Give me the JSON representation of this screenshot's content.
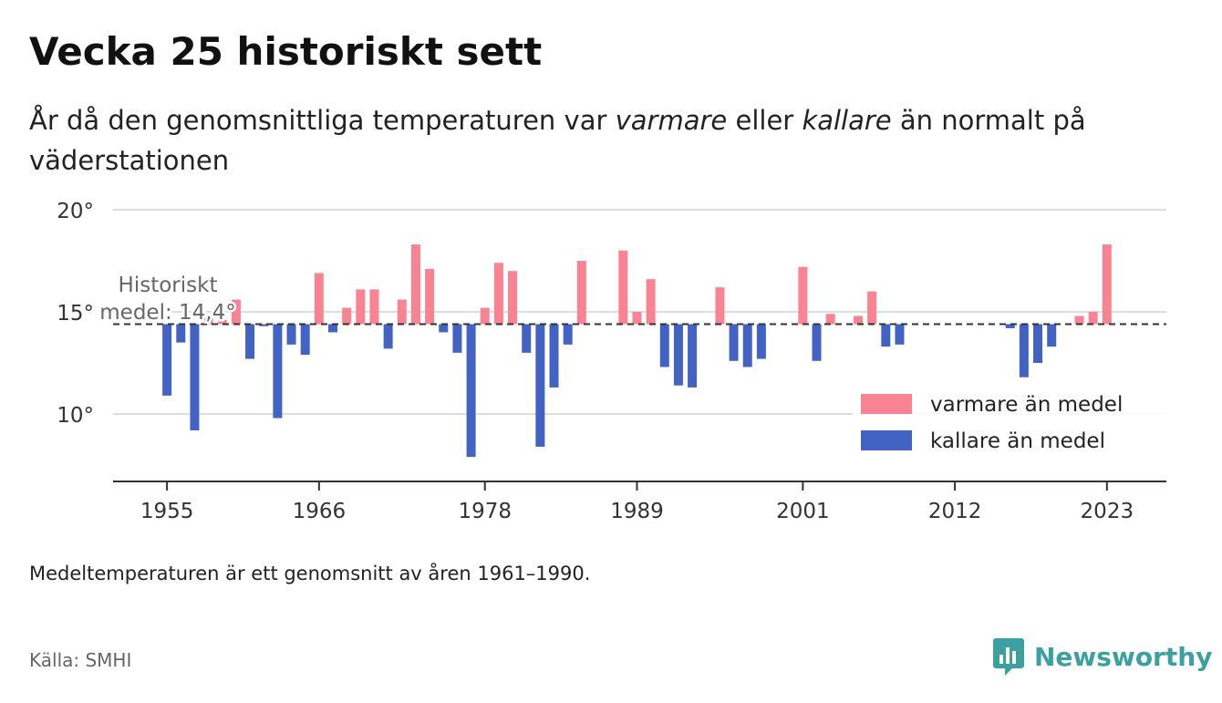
{
  "header": {
    "title": "Vecka 25 historiskt sett",
    "subtitle_pre": "År då den genomsnittliga temperaturen var ",
    "subtitle_warm": "varmare",
    "subtitle_mid": " eller ",
    "subtitle_cold": "kallare",
    "subtitle_post": " än normalt på väderstationen"
  },
  "chart_data": {
    "type": "bar",
    "baseline": 14.4,
    "baseline_label_line1": "Historiskt",
    "baseline_label_line2": "medel: 14,4°",
    "ylim": [
      6.7,
      20
    ],
    "yticks": [
      10,
      15,
      20
    ],
    "ytick_labels": [
      "10°",
      "15°",
      "20°"
    ],
    "xlim": [
      1951.1,
      2027.3
    ],
    "xticks": [
      1955,
      1966,
      1978,
      1989,
      2001,
      2012,
      2023
    ],
    "xtick_labels": [
      "1955",
      "1966",
      "1978",
      "1989",
      "2001",
      "2012",
      "2023"
    ],
    "grid": true,
    "legend": {
      "position": "bottom-right",
      "warm_label": "varmare än medel",
      "cold_label": "kallare än medel"
    },
    "colors": {
      "warm": "#f98393",
      "cold": "#4363c4",
      "baseline": "#333333",
      "grid": "#dddddd"
    },
    "x": [
      1955,
      1956,
      1957,
      1958,
      1959,
      1960,
      1961,
      1962,
      1963,
      1964,
      1965,
      1966,
      1967,
      1968,
      1969,
      1970,
      1971,
      1972,
      1973,
      1974,
      1975,
      1976,
      1977,
      1978,
      1979,
      1980,
      1981,
      1982,
      1983,
      1984,
      1985,
      1986,
      1987,
      1988,
      1989,
      1990,
      1991,
      1992,
      1993,
      1994,
      1995,
      1996,
      1997,
      1998,
      1999,
      2000,
      2001,
      2002,
      2003,
      2004,
      2005,
      2006,
      2007,
      2008,
      2009,
      2010,
      2011,
      2012,
      2013,
      2014,
      2015,
      2016,
      2017,
      2018,
      2019,
      2020,
      2021,
      2022,
      2023
    ],
    "values": [
      10.9,
      13.5,
      9.2,
      14.7,
      14.6,
      15.6,
      12.7,
      14.3,
      9.8,
      13.4,
      12.9,
      16.9,
      14.0,
      15.2,
      16.1,
      16.1,
      13.2,
      15.6,
      18.3,
      17.1,
      14.0,
      13.0,
      7.9,
      15.2,
      17.4,
      17.0,
      13.0,
      8.4,
      11.3,
      13.4,
      17.5,
      14.4,
      14.4,
      18.0,
      15.0,
      16.6,
      12.3,
      11.4,
      11.3,
      14.4,
      16.2,
      12.6,
      12.3,
      12.7,
      14.4,
      14.4,
      17.2,
      12.6,
      14.9,
      14.4,
      14.8,
      16.0,
      13.3,
      13.4,
      14.4,
      14.4,
      14.4,
      14.4,
      14.4,
      14.4,
      14.4,
      14.2,
      11.8,
      12.5,
      13.3,
      14.4,
      14.8,
      15.0,
      18.3
    ]
  },
  "footer": {
    "note": "Medeltemperaturen är ett genomsnitt av åren 1961–1990.",
    "source": "Källa: SMHI",
    "brand": "Newsworthy"
  }
}
